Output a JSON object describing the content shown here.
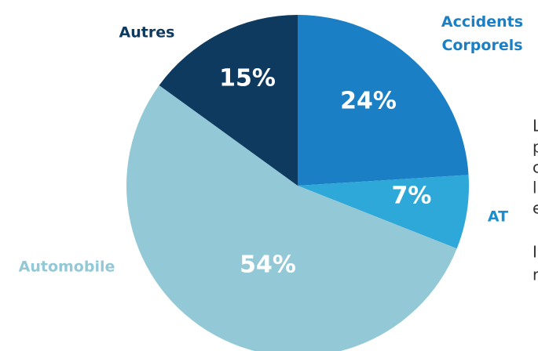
{
  "chart_data": {
    "type": "pie",
    "categories": [
      "Accidents Corporels",
      "AT",
      "Automobile",
      "Autres"
    ],
    "values": [
      24,
      7,
      54,
      15
    ],
    "value_labels": [
      "24%",
      "7%",
      "54%",
      "15%"
    ],
    "colors": [
      "#1a7fc4",
      "#2ea8d8",
      "#93c8d6",
      "#0f3a5f"
    ],
    "label_colors": [
      "#1a7fc4",
      "#1a8fd0",
      "#93c8d6",
      "#0f3a5f"
    ]
  },
  "side_text": [
    "L",
    "p",
    "c",
    "l",
    "e",
    "I",
    "r"
  ]
}
